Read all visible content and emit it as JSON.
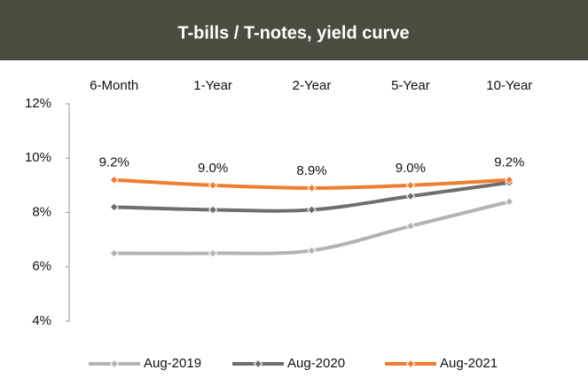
{
  "chart_data": {
    "type": "line",
    "title": "T-bills / T-notes, yield curve",
    "categories": [
      "6-Month",
      "1-Year",
      "2-Year",
      "5-Year",
      "10-Year"
    ],
    "series": [
      {
        "name": "Aug-2019",
        "color": "#b3b3b3",
        "values": [
          6.5,
          6.5,
          6.6,
          7.5,
          8.4
        ]
      },
      {
        "name": "Aug-2020",
        "color": "#6e6e6e",
        "values": [
          8.2,
          8.1,
          8.1,
          8.6,
          9.1
        ]
      },
      {
        "name": "Aug-2021",
        "color": "#ee7d31",
        "values": [
          9.2,
          9.0,
          8.9,
          9.0,
          9.2
        ],
        "value_labels": [
          "9.2%",
          "9.0%",
          "8.9%",
          "9.0%",
          "9.2%"
        ]
      }
    ],
    "ylim": [
      4,
      12
    ],
    "yticks": [
      {
        "value": 4,
        "label": "4%"
      },
      {
        "value": 6,
        "label": "6%"
      },
      {
        "value": 8,
        "label": "8%"
      },
      {
        "value": 10,
        "label": "10%"
      },
      {
        "value": 12,
        "label": "12%"
      }
    ],
    "grid": false,
    "legend": "bottom"
  }
}
